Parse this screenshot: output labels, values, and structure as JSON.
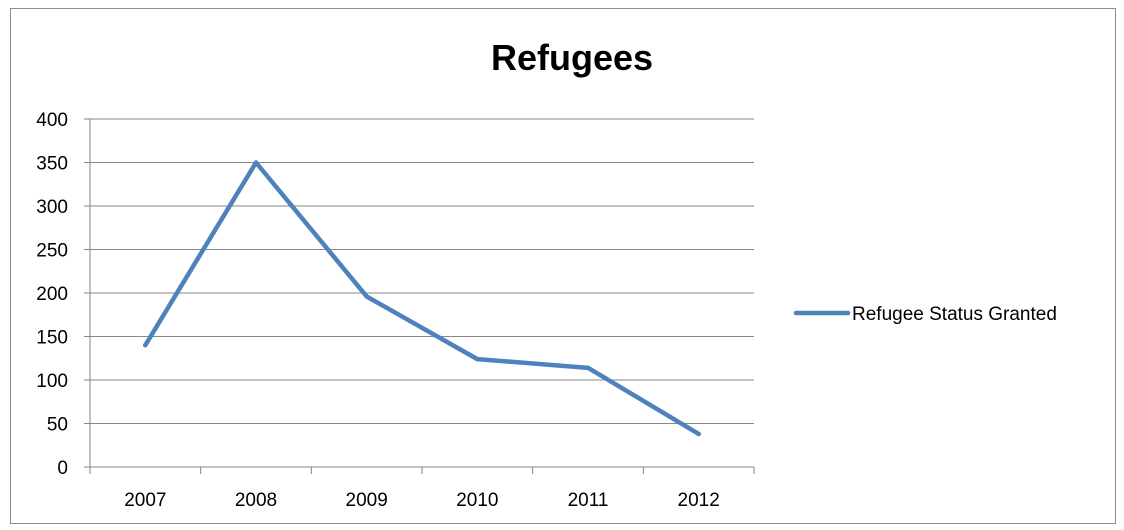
{
  "chart_data": {
    "type": "line",
    "title": "Refugees",
    "xlabel": "",
    "ylabel": "",
    "categories": [
      "2007",
      "2008",
      "2009",
      "2010",
      "2011",
      "2012"
    ],
    "series": [
      {
        "name": "Refugee Status Granted",
        "values": [
          140,
          350,
          196,
          124,
          114,
          38
        ],
        "color": "#4f81bd"
      }
    ],
    "ylim": [
      0,
      400
    ],
    "yticks": [
      0,
      50,
      100,
      150,
      200,
      250,
      300,
      350,
      400
    ],
    "grid": true,
    "legend_position": "right"
  }
}
